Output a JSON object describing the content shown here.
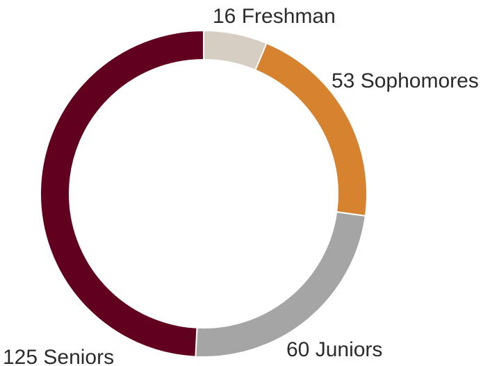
{
  "chart_data": {
    "type": "pie",
    "style": "donut",
    "slices": [
      {
        "label": "Freshman",
        "value": 16,
        "display": "16 Freshman",
        "color": "#d6cdc3"
      },
      {
        "label": "Sophomores",
        "value": 53,
        "display": "53 Sophomores",
        "color": "#d6822f"
      },
      {
        "label": "Juniors",
        "value": 60,
        "display": "60 Juniors",
        "color": "#a5a5a5"
      },
      {
        "label": "Seniors",
        "value": 125,
        "display": "125 Seniors",
        "color": "#620020"
      }
    ],
    "start_angle": "top",
    "direction": "clockwise",
    "legend": "none"
  }
}
